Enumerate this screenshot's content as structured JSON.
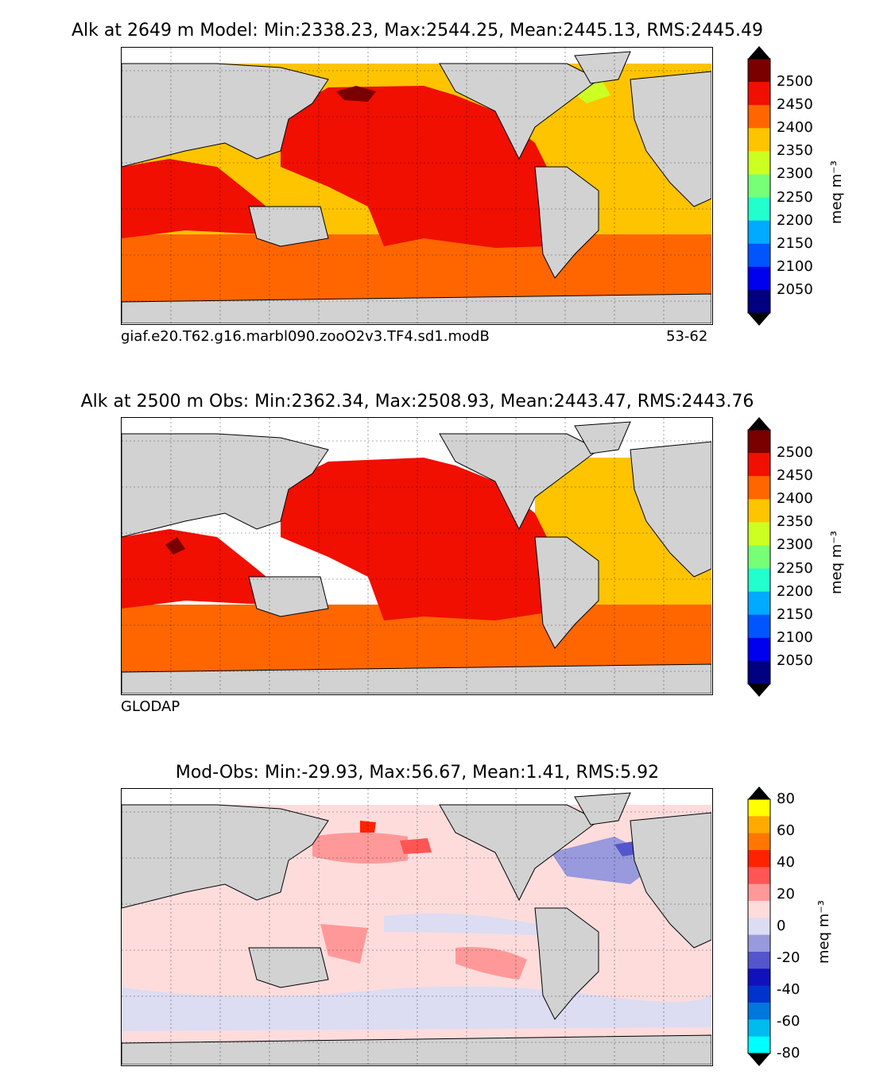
{
  "panels": [
    {
      "title": "Alk at 2649 m Model: Min:2338.23, Max:2544.25, Mean:2445.13, RMS:2445.49",
      "subtitle_left": "giaf.e20.T62.g16.marbl090.zooO2v3.TF4.sd1.modB",
      "subtitle_right": "53-62"
    },
    {
      "title": "Alk at 2500 m Obs: Min:2362.34, Max:2508.93, Mean:2443.47, RMS:2443.76",
      "subtitle_left": "GLODAP",
      "subtitle_right": ""
    },
    {
      "title": "Mod-Obs: Min:-29.93, Max:56.67, Mean:1.41, RMS:5.92",
      "subtitle_left": "",
      "subtitle_right": ""
    }
  ],
  "colorbars": [
    {
      "unit": "meq m⁻³",
      "ticks": [
        "2500",
        "2450",
        "2400",
        "2350",
        "2300",
        "2250",
        "2200",
        "2150",
        "2100",
        "2050"
      ],
      "colors": [
        "#7a0000",
        "#f00f00",
        "#ff6600",
        "#ffc400",
        "#ccff22",
        "#77ff77",
        "#22ffcc",
        "#00aaff",
        "#0055ff",
        "#0000ee",
        "#000080"
      ]
    },
    {
      "unit": "meq m⁻³",
      "ticks": [
        "2500",
        "2450",
        "2400",
        "2350",
        "2300",
        "2250",
        "2200",
        "2150",
        "2100",
        "2050"
      ],
      "colors": [
        "#7a0000",
        "#f00f00",
        "#ff6600",
        "#ffc400",
        "#ccff22",
        "#77ff77",
        "#22ffcc",
        "#00aaff",
        "#0055ff",
        "#0000ee",
        "#000080"
      ]
    },
    {
      "unit": "meq m⁻³",
      "ticks": [
        "80",
        "60",
        "40",
        "20",
        "0",
        "-20",
        "-40",
        "-60",
        "-80"
      ],
      "colors": [
        "#ffff00",
        "#ffaa00",
        "#ff7700",
        "#ff2200",
        "#ff5555",
        "#ff9999",
        "#ffdcdc",
        "#dcdcf2",
        "#9999dd",
        "#5555cc",
        "#1111bb",
        "#0033cc",
        "#0077dd",
        "#00bbee",
        "#00ffff"
      ]
    }
  ],
  "map_colors": {
    "land": "#d2d2d2",
    "nodata": "#ffffff",
    "coast": "#000000"
  }
}
